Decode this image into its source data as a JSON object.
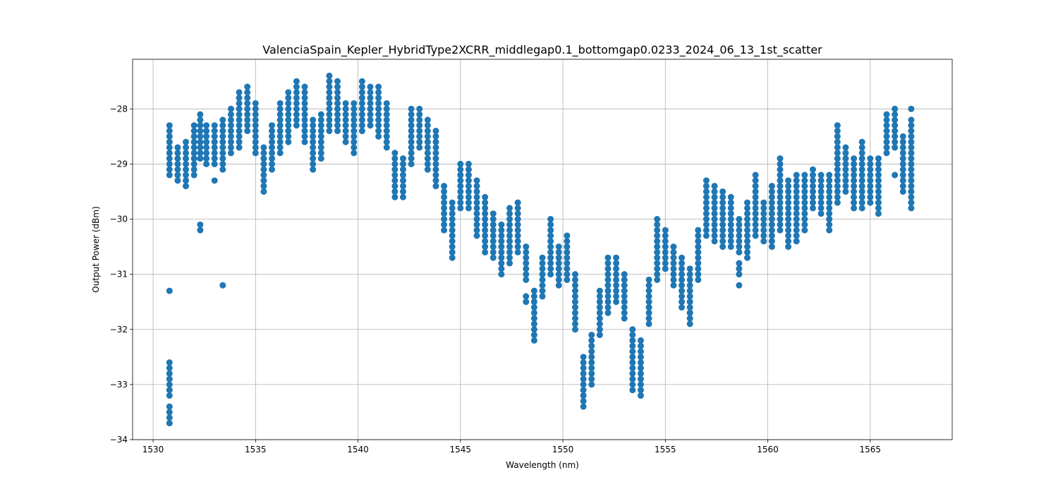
{
  "chart_data": {
    "type": "scatter",
    "title": "ValenciaSpain_Kepler_HybridType2XCRR_middlegap0.1_bottomgap0.0233_2024_06_13_1st_scatter",
    "xlabel": "Wavelength (nm)",
    "ylabel": "Output Power (dBm)",
    "xlim": [
      1529,
      1569
    ],
    "ylim": [
      -34,
      -27.1
    ],
    "xticks": [
      1530,
      1535,
      1540,
      1545,
      1550,
      1555,
      1560,
      1565
    ],
    "yticks": [
      -34,
      -33,
      -32,
      -31,
      -30,
      -29,
      -28
    ],
    "grid": true,
    "marker_color": "#1f77b4",
    "series": [
      {
        "step": 0.1,
        "columns": [
          {
            "x": 1530.8,
            "ymin": -29.2,
            "ymax": -28.3,
            "extra": [
              -31.3,
              -32.6,
              -32.7,
              -32.8,
              -32.9,
              -33.0,
              -33.1,
              -33.2,
              -33.4,
              -33.5,
              -33.6,
              -33.7
            ]
          },
          {
            "x": 1531.2,
            "ymin": -29.3,
            "ymax": -28.7
          },
          {
            "x": 1531.6,
            "ymin": -29.4,
            "ymax": -28.6
          },
          {
            "x": 1532.0,
            "ymin": -29.2,
            "ymax": -28.3
          },
          {
            "x": 1532.3,
            "ymin": -28.9,
            "ymax": -28.1,
            "extra": [
              -30.1,
              -30.2
            ]
          },
          {
            "x": 1532.6,
            "ymin": -29.0,
            "ymax": -28.3
          },
          {
            "x": 1533.0,
            "ymin": -29.0,
            "ymax": -28.3,
            "extra": [
              -29.3
            ]
          },
          {
            "x": 1533.4,
            "ymin": -29.1,
            "ymax": -28.2,
            "extra": [
              -31.2
            ]
          },
          {
            "x": 1533.8,
            "ymin": -28.8,
            "ymax": -28.0
          },
          {
            "x": 1534.2,
            "ymin": -28.7,
            "ymax": -27.7
          },
          {
            "x": 1534.6,
            "ymin": -28.4,
            "ymax": -27.6
          },
          {
            "x": 1535.0,
            "ymin": -28.8,
            "ymax": -27.9
          },
          {
            "x": 1535.4,
            "ymin": -29.5,
            "ymax": -28.7
          },
          {
            "x": 1535.8,
            "ymin": -29.1,
            "ymax": -28.3
          },
          {
            "x": 1536.2,
            "ymin": -28.8,
            "ymax": -27.9
          },
          {
            "x": 1536.6,
            "ymin": -28.6,
            "ymax": -27.7
          },
          {
            "x": 1537.0,
            "ymin": -28.3,
            "ymax": -27.5
          },
          {
            "x": 1537.4,
            "ymin": -28.6,
            "ymax": -27.6
          },
          {
            "x": 1537.8,
            "ymin": -29.1,
            "ymax": -28.2
          },
          {
            "x": 1538.2,
            "ymin": -28.9,
            "ymax": -28.1
          },
          {
            "x": 1538.6,
            "ymin": -28.4,
            "ymax": -27.4
          },
          {
            "x": 1539.0,
            "ymin": -28.4,
            "ymax": -27.5
          },
          {
            "x": 1539.4,
            "ymin": -28.6,
            "ymax": -27.9
          },
          {
            "x": 1539.8,
            "ymin": -28.8,
            "ymax": -27.9
          },
          {
            "x": 1540.2,
            "ymin": -28.4,
            "ymax": -27.5
          },
          {
            "x": 1540.6,
            "ymin": -28.3,
            "ymax": -27.6
          },
          {
            "x": 1541.0,
            "ymin": -28.5,
            "ymax": -27.6
          },
          {
            "x": 1541.4,
            "ymin": -28.7,
            "ymax": -27.9
          },
          {
            "x": 1541.8,
            "ymin": -29.6,
            "ymax": -28.8
          },
          {
            "x": 1542.2,
            "ymin": -29.6,
            "ymax": -28.9
          },
          {
            "x": 1542.6,
            "ymin": -29.0,
            "ymax": -28.0
          },
          {
            "x": 1543.0,
            "ymin": -28.7,
            "ymax": -28.0
          },
          {
            "x": 1543.4,
            "ymin": -29.1,
            "ymax": -28.2
          },
          {
            "x": 1543.8,
            "ymin": -29.4,
            "ymax": -28.4
          },
          {
            "x": 1544.2,
            "ymin": -30.2,
            "ymax": -29.4
          },
          {
            "x": 1544.6,
            "ymin": -30.7,
            "ymax": -29.7
          },
          {
            "x": 1545.0,
            "ymin": -29.8,
            "ymax": -29.0
          },
          {
            "x": 1545.4,
            "ymin": -29.8,
            "ymax": -29.0
          },
          {
            "x": 1545.8,
            "ymin": -30.3,
            "ymax": -29.3
          },
          {
            "x": 1546.2,
            "ymin": -30.6,
            "ymax": -29.6
          },
          {
            "x": 1546.6,
            "ymin": -30.7,
            "ymax": -29.9
          },
          {
            "x": 1547.0,
            "ymin": -31.0,
            "ymax": -30.1
          },
          {
            "x": 1547.4,
            "ymin": -30.8,
            "ymax": -29.8
          },
          {
            "x": 1547.8,
            "ymin": -30.6,
            "ymax": -29.7
          },
          {
            "x": 1548.2,
            "ymin": -31.1,
            "ymax": -30.5,
            "extra": [
              -31.4,
              -31.5
            ]
          },
          {
            "x": 1548.6,
            "ymin": -32.2,
            "ymax": -31.3
          },
          {
            "x": 1549.0,
            "ymin": -31.4,
            "ymax": -30.7
          },
          {
            "x": 1549.4,
            "ymin": -31.0,
            "ymax": -30.0
          },
          {
            "x": 1549.8,
            "ymin": -31.2,
            "ymax": -30.5
          },
          {
            "x": 1550.2,
            "ymin": -31.1,
            "ymax": -30.3
          },
          {
            "x": 1550.6,
            "ymin": -32.0,
            "ymax": -31.0
          },
          {
            "x": 1551.0,
            "ymin": -33.4,
            "ymax": -32.5
          },
          {
            "x": 1551.4,
            "ymin": -33.0,
            "ymax": -32.1
          },
          {
            "x": 1551.8,
            "ymin": -32.1,
            "ymax": -31.3
          },
          {
            "x": 1552.2,
            "ymin": -31.7,
            "ymax": -30.7
          },
          {
            "x": 1552.6,
            "ymin": -31.5,
            "ymax": -30.7
          },
          {
            "x": 1553.0,
            "ymin": -31.8,
            "ymax": -31.0
          },
          {
            "x": 1553.4,
            "ymin": -33.1,
            "ymax": -32.0
          },
          {
            "x": 1553.8,
            "ymin": -33.2,
            "ymax": -32.2
          },
          {
            "x": 1554.2,
            "ymin": -31.9,
            "ymax": -31.1
          },
          {
            "x": 1554.6,
            "ymin": -31.1,
            "ymax": -30.0
          },
          {
            "x": 1555.0,
            "ymin": -30.9,
            "ymax": -30.2
          },
          {
            "x": 1555.4,
            "ymin": -31.2,
            "ymax": -30.5
          },
          {
            "x": 1555.8,
            "ymin": -31.6,
            "ymax": -30.7
          },
          {
            "x": 1556.2,
            "ymin": -31.9,
            "ymax": -30.9,
            "extra": [
              -31.7
            ]
          },
          {
            "x": 1556.6,
            "ymin": -31.1,
            "ymax": -30.2
          },
          {
            "x": 1557.0,
            "ymin": -30.3,
            "ymax": -29.3
          },
          {
            "x": 1557.4,
            "ymin": -30.4,
            "ymax": -29.4
          },
          {
            "x": 1557.8,
            "ymin": -30.5,
            "ymax": -29.5
          },
          {
            "x": 1558.2,
            "ymin": -30.5,
            "ymax": -29.6
          },
          {
            "x": 1558.6,
            "ymin": -30.6,
            "ymax": -30.0,
            "extra": [
              -30.8,
              -30.9,
              -31.0,
              -31.2
            ]
          },
          {
            "x": 1559.0,
            "ymin": -30.7,
            "ymax": -29.7
          },
          {
            "x": 1559.4,
            "ymin": -30.3,
            "ymax": -29.2
          },
          {
            "x": 1559.8,
            "ymin": -30.4,
            "ymax": -29.7
          },
          {
            "x": 1560.2,
            "ymin": -30.5,
            "ymax": -29.4
          },
          {
            "x": 1560.6,
            "ymin": -30.2,
            "ymax": -28.9
          },
          {
            "x": 1561.0,
            "ymin": -30.5,
            "ymax": -29.3
          },
          {
            "x": 1561.4,
            "ymin": -30.4,
            "ymax": -29.2
          },
          {
            "x": 1561.8,
            "ymin": -30.2,
            "ymax": -29.2
          },
          {
            "x": 1562.2,
            "ymin": -29.8,
            "ymax": -29.1
          },
          {
            "x": 1562.6,
            "ymin": -29.9,
            "ymax": -29.2
          },
          {
            "x": 1563.0,
            "ymin": -30.2,
            "ymax": -29.2
          },
          {
            "x": 1563.4,
            "ymin": -29.7,
            "ymax": -28.3
          },
          {
            "x": 1563.8,
            "ymin": -29.5,
            "ymax": -28.7
          },
          {
            "x": 1564.2,
            "ymin": -29.8,
            "ymax": -28.9
          },
          {
            "x": 1564.6,
            "ymin": -29.8,
            "ymax": -28.6
          },
          {
            "x": 1565.0,
            "ymin": -29.7,
            "ymax": -28.9
          },
          {
            "x": 1565.4,
            "ymin": -29.9,
            "ymax": -28.9
          },
          {
            "x": 1565.8,
            "ymin": -28.8,
            "ymax": -28.1
          },
          {
            "x": 1566.2,
            "ymin": -28.7,
            "ymax": -28.0,
            "extra": [
              -29.2
            ]
          },
          {
            "x": 1566.6,
            "ymin": -29.5,
            "ymax": -28.5
          },
          {
            "x": 1567.0,
            "ymin": -29.8,
            "ymax": -28.2,
            "extra": [
              -28.0
            ]
          }
        ]
      }
    ]
  }
}
